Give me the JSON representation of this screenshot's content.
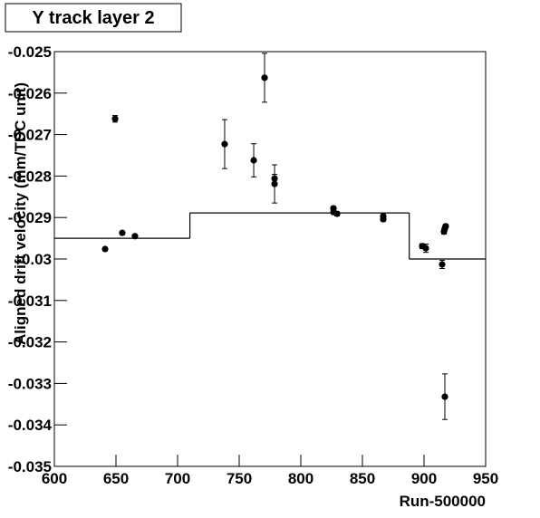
{
  "chart_data": {
    "type": "scatter",
    "title": "Y track layer 2",
    "x_label": "Run-500000",
    "y_label": "Aligned drift velocity (mm/TDC unit)",
    "xlim": [
      600,
      950
    ],
    "ylim": [
      -0.035,
      -0.025
    ],
    "xticks": [
      600,
      650,
      700,
      750,
      800,
      850,
      900,
      950
    ],
    "yticks": [
      -0.025,
      -0.026,
      -0.027,
      -0.028,
      -0.029,
      -0.03,
      -0.031,
      -0.032,
      -0.033,
      -0.034,
      -0.035
    ],
    "color": "#000000",
    "x": [
      641.2,
      649.3,
      655.1,
      665.4,
      738.2,
      761.8,
      770.6,
      778.7,
      778.7,
      826.5,
      826.5,
      829.4,
      866.9,
      866.9,
      898.5,
      901.5,
      914.7,
      916.2,
      916.9,
      917.6,
      916.9
    ],
    "values": [
      -0.02976,
      -0.02662,
      -0.02937,
      -0.02945,
      -0.02723,
      -0.02762,
      -0.02563,
      -0.02806,
      -0.02819,
      -0.02878,
      -0.02887,
      -0.02891,
      -0.02897,
      -0.02904,
      -0.02969,
      -0.02974,
      -0.03013,
      -0.02934,
      -0.02926,
      -0.02921,
      -0.03332
    ],
    "errors": [
      4e-05,
      8e-05,
      4e-05,
      4e-05,
      0.00059,
      0.0004,
      0.00059,
      0.0001,
      0.00046,
      5e-05,
      5e-05,
      5e-05,
      5e-05,
      5e-05,
      6e-05,
      0.0001,
      0.0001,
      6e-05,
      5e-05,
      5e-05,
      0.00055
    ],
    "step": {
      "edges": [
        600,
        710,
        888,
        950
      ],
      "values": [
        -0.0295,
        -0.02889,
        -0.03
      ]
    }
  }
}
